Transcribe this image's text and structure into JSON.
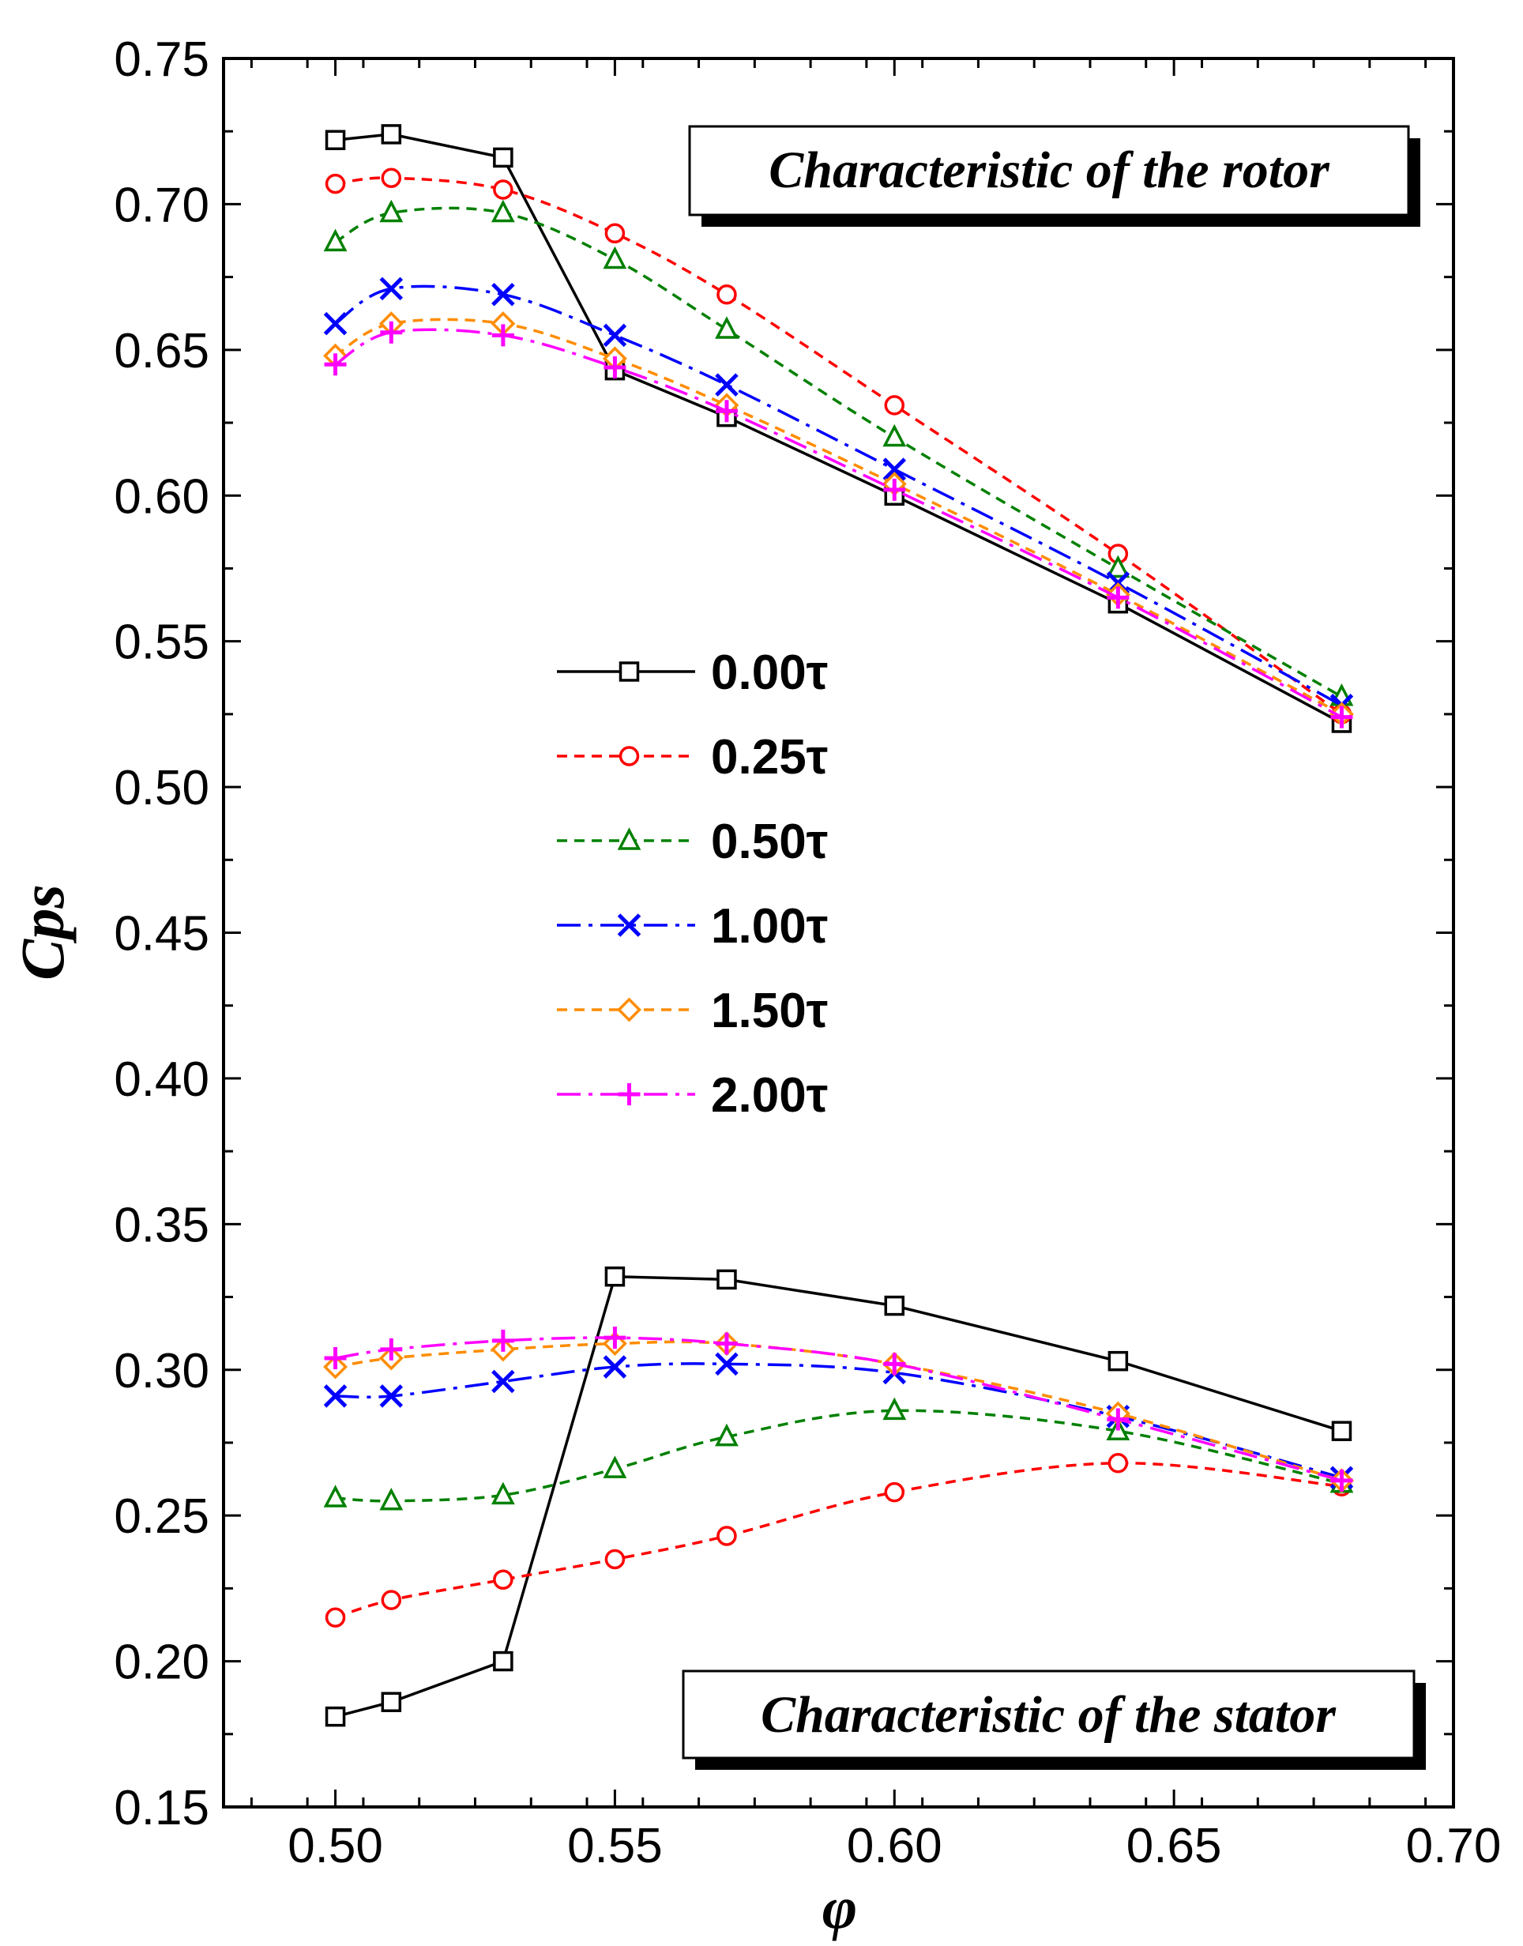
{
  "chart_data": {
    "type": "line",
    "xlabel": "φ",
    "ylabel": "Cps",
    "xlim": [
      0.48,
      0.7
    ],
    "ylim": [
      0.15,
      0.75
    ],
    "x_ticks": [
      "0.50",
      "0.55",
      "0.60",
      "0.65",
      "0.70"
    ],
    "x_tick_values": [
      0.5,
      0.55,
      0.6,
      0.65,
      0.7
    ],
    "y_ticks": [
      "0.15",
      "0.20",
      "0.25",
      "0.30",
      "0.35",
      "0.40",
      "0.45",
      "0.50",
      "0.55",
      "0.60",
      "0.65",
      "0.70",
      "0.75"
    ],
    "y_tick_values": [
      0.15,
      0.2,
      0.25,
      0.3,
      0.35,
      0.4,
      0.45,
      0.5,
      0.55,
      0.6,
      0.65,
      0.7,
      0.75
    ],
    "x": [
      0.5,
      0.51,
      0.53,
      0.55,
      0.57,
      0.6,
      0.64,
      0.68
    ],
    "annotations": [
      "Characteristic of the rotor",
      "Characteristic of the stator"
    ],
    "series": [
      {
        "name": "0.00τ",
        "color": "#000000",
        "dash": "solid",
        "marker": "square",
        "rotor": [
          0.722,
          0.724,
          0.716,
          0.643,
          0.627,
          0.6,
          0.563,
          0.522
        ],
        "stator": [
          0.181,
          0.186,
          0.2,
          0.332,
          0.331,
          0.322,
          0.303,
          0.279
        ]
      },
      {
        "name": "0.25τ",
        "color": "#ff0000",
        "dash": "dashed",
        "marker": "circle",
        "rotor": [
          0.707,
          0.709,
          0.705,
          0.69,
          0.669,
          0.631,
          0.58,
          0.525
        ],
        "stator": [
          0.215,
          0.221,
          0.228,
          0.235,
          0.243,
          0.258,
          0.268,
          0.26
        ]
      },
      {
        "name": "0.50τ",
        "color": "#008000",
        "dash": "dashed",
        "marker": "triangle",
        "rotor": [
          0.687,
          0.697,
          0.697,
          0.681,
          0.657,
          0.62,
          0.575,
          0.531
        ],
        "stator": [
          0.256,
          0.255,
          0.257,
          0.266,
          0.277,
          0.286,
          0.279,
          0.261
        ]
      },
      {
        "name": "1.00τ",
        "color": "#0000ff",
        "dash": "dashdot",
        "marker": "x",
        "rotor": [
          0.659,
          0.671,
          0.669,
          0.655,
          0.638,
          0.609,
          0.57,
          0.528
        ],
        "stator": [
          0.291,
          0.291,
          0.296,
          0.301,
          0.302,
          0.299,
          0.284,
          0.263
        ]
      },
      {
        "name": "1.50τ",
        "color": "#ff8c00",
        "dash": "dashed",
        "marker": "diamond",
        "rotor": [
          0.648,
          0.659,
          0.659,
          0.647,
          0.631,
          0.604,
          0.566,
          0.525
        ],
        "stator": [
          0.301,
          0.304,
          0.307,
          0.309,
          0.309,
          0.302,
          0.285,
          0.262
        ]
      },
      {
        "name": "2.00τ",
        "color": "#ff00ff",
        "dash": "dashdot",
        "marker": "plus",
        "rotor": [
          0.645,
          0.656,
          0.655,
          0.644,
          0.629,
          0.602,
          0.565,
          0.524
        ],
        "stator": [
          0.304,
          0.307,
          0.31,
          0.311,
          0.309,
          0.302,
          0.283,
          0.262
        ]
      }
    ]
  }
}
